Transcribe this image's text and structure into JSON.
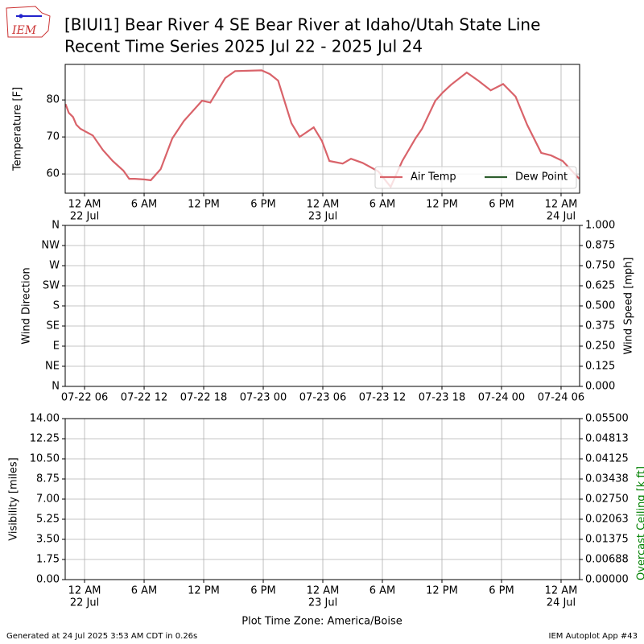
{
  "header": {
    "logo_text": "IEM",
    "title": "[BIUI1] Bear River 4 SE Bear River at Idaho/Utah State Line",
    "subtitle": "Recent Time Series 2025 Jul 22 - 2025 Jul 24"
  },
  "footer": {
    "left": "Generated at 24 Jul 2025 3:53 AM CDT in 0.26s",
    "right": "IEM Autoplot App #43"
  },
  "chart_data": [
    {
      "type": "line",
      "ylabel": "Temperature [F]",
      "legend": "lower right",
      "grid": true,
      "xlim": [
        "2025-07-21T22:03",
        "2025-07-24T01:52"
      ],
      "ylim": [
        54.8,
        89.6
      ],
      "yticks": [
        60,
        70,
        80
      ],
      "xticks": [
        {
          "value": "2025-07-22T00:00",
          "label": "12 AM",
          "date": "22 Jul"
        },
        {
          "value": "2025-07-22T06:00",
          "label": "6 AM"
        },
        {
          "value": "2025-07-22T12:00",
          "label": "12 PM"
        },
        {
          "value": "2025-07-22T18:00",
          "label": "6 PM"
        },
        {
          "value": "2025-07-23T00:00",
          "label": "12 AM",
          "date": "23 Jul"
        },
        {
          "value": "2025-07-23T06:00",
          "label": "6 AM"
        },
        {
          "value": "2025-07-23T12:00",
          "label": "12 PM"
        },
        {
          "value": "2025-07-23T18:00",
          "label": "6 PM"
        },
        {
          "value": "2025-07-24T00:00",
          "label": "12 AM",
          "date": "24 Jul"
        }
      ],
      "x": [
        "2025-07-21T22:05",
        "2025-07-21T22:25",
        "2025-07-21T22:50",
        "2025-07-21T23:10",
        "2025-07-21T23:35",
        "2025-07-22T00:50",
        "2025-07-22T01:50",
        "2025-07-22T02:50",
        "2025-07-22T03:55",
        "2025-07-22T04:30",
        "2025-07-22T05:05",
        "2025-07-22T06:05",
        "2025-07-22T06:40",
        "2025-07-22T07:40",
        "2025-07-22T08:50",
        "2025-07-22T10:00",
        "2025-07-22T11:50",
        "2025-07-22T12:40",
        "2025-07-22T14:10",
        "2025-07-22T15:10",
        "2025-07-22T17:50",
        "2025-07-22T18:40",
        "2025-07-22T19:30",
        "2025-07-22T20:50",
        "2025-07-22T21:40",
        "2025-07-22T23:05",
        "2025-07-22T23:55",
        "2025-07-23T00:40",
        "2025-07-23T02:00",
        "2025-07-23T02:50",
        "2025-07-23T04:00",
        "2025-07-23T05:35",
        "2025-07-23T06:50",
        "2025-07-23T08:00",
        "2025-07-23T09:20",
        "2025-07-23T10:00",
        "2025-07-23T11:20",
        "2025-07-23T12:05",
        "2025-07-23T12:55",
        "2025-07-23T14:30",
        "2025-07-23T15:40",
        "2025-07-23T16:55",
        "2025-07-23T18:10",
        "2025-07-23T19:25",
        "2025-07-23T20:35",
        "2025-07-23T22:00",
        "2025-07-23T23:00",
        "2025-07-24T00:10",
        "2025-07-24T01:50"
      ],
      "series": [
        {
          "name": "Air Temp",
          "color": "#d9636a",
          "values": [
            78.9,
            76.5,
            75.4,
            73.3,
            72.2,
            70.4,
            66.5,
            63.5,
            60.9,
            58.7,
            58.7,
            58.5,
            58.3,
            61.3,
            69.6,
            74.3,
            79.8,
            79.3,
            85.9,
            87.8,
            88,
            87,
            85.2,
            73.7,
            70,
            72.6,
            68.9,
            63.5,
            62.8,
            64.1,
            63,
            60.7,
            56.5,
            63.5,
            69.6,
            72.2,
            79.8,
            82,
            84.1,
            87.4,
            85.2,
            82.6,
            84.3,
            80.9,
            73.3,
            65.7,
            65,
            63.5,
            58.7
          ]
        },
        {
          "name": "Dew Point",
          "color": "#2e5e2e",
          "values": [
            null,
            null,
            null,
            null,
            null,
            null,
            null,
            null,
            null,
            null,
            null,
            null,
            null,
            null,
            null,
            null,
            null,
            null,
            null,
            null,
            null,
            null,
            null,
            null,
            null,
            null,
            null,
            null,
            null,
            null,
            null,
            null,
            null,
            null,
            null,
            null,
            null,
            null,
            null,
            null,
            null,
            null,
            null,
            null,
            null,
            null,
            null,
            null,
            null
          ]
        }
      ]
    },
    {
      "type": "line",
      "ylabel": "Wind Direction",
      "y2label": "Wind Speed [mph]",
      "grid": true,
      "xlim": [
        "2025-07-22T04:03",
        "2025-07-24T07:52"
      ],
      "ylim": [
        0,
        360
      ],
      "yticks": [
        {
          "value": 0,
          "label": "N"
        },
        {
          "value": 45,
          "label": "NE"
        },
        {
          "value": 90,
          "label": "E"
        },
        {
          "value": 135,
          "label": "SE"
        },
        {
          "value": 180,
          "label": "S"
        },
        {
          "value": 225,
          "label": "SW"
        },
        {
          "value": 270,
          "label": "W"
        },
        {
          "value": 315,
          "label": "NW"
        },
        {
          "value": 360,
          "label": "N"
        }
      ],
      "y2lim": [
        0,
        1
      ],
      "y2ticks": [
        {
          "value": 0,
          "label": "0.000"
        },
        {
          "value": 0.125,
          "label": "0.125"
        },
        {
          "value": 0.25,
          "label": "0.250"
        },
        {
          "value": 0.375,
          "label": "0.375"
        },
        {
          "value": 0.5,
          "label": "0.500"
        },
        {
          "value": 0.625,
          "label": "0.625"
        },
        {
          "value": 0.75,
          "label": "0.750"
        },
        {
          "value": 0.875,
          "label": "0.875"
        },
        {
          "value": 1,
          "label": "1.000"
        }
      ],
      "xticks": [
        {
          "value": "2025-07-22T06:00",
          "label": "07-22 06"
        },
        {
          "value": "2025-07-22T12:00",
          "label": "07-22 12"
        },
        {
          "value": "2025-07-22T18:00",
          "label": "07-22 18"
        },
        {
          "value": "2025-07-23T00:00",
          "label": "07-23 00"
        },
        {
          "value": "2025-07-23T06:00",
          "label": "07-23 06"
        },
        {
          "value": "2025-07-23T12:00",
          "label": "07-23 12"
        },
        {
          "value": "2025-07-23T18:00",
          "label": "07-23 18"
        },
        {
          "value": "2025-07-24T00:00",
          "label": "07-24 00"
        },
        {
          "value": "2025-07-24T06:00",
          "label": "07-24 06"
        }
      ]
    },
    {
      "type": "line",
      "ylabel": "Visibility [miles]",
      "y2label": "Overcast Ceiling [k ft]",
      "y2color": "#008000",
      "xlabel": "Plot Time Zone: America/Boise",
      "grid": true,
      "xlim": [
        "2025-07-21T22:03",
        "2025-07-24T01:52"
      ],
      "ylim": [
        0,
        14
      ],
      "yticks": [
        {
          "value": 0,
          "label": "0.00"
        },
        1.75,
        {
          "value": 3.5,
          "label": "3.50"
        },
        5.25,
        {
          "value": 7,
          "label": "7.00"
        },
        8.75,
        {
          "value": 10.5,
          "label": "10.50"
        },
        12.25,
        {
          "value": 14,
          "label": "14.00"
        }
      ],
      "y2lim": [
        0,
        0.055
      ],
      "y2ticks": [
        {
          "value": 0,
          "label": "0.00000"
        },
        {
          "value": 0.006875,
          "label": "0.00688"
        },
        {
          "value": 0.01375,
          "label": "0.01375"
        },
        {
          "value": 0.020625,
          "label": "0.02063"
        },
        {
          "value": 0.0275,
          "label": "0.02750"
        },
        {
          "value": 0.034375,
          "label": "0.03438"
        },
        {
          "value": 0.04125,
          "label": "0.04125"
        },
        {
          "value": 0.048125,
          "label": "0.04813"
        },
        {
          "value": 0.055,
          "label": "0.05500"
        }
      ],
      "xticks": [
        {
          "value": "2025-07-22T00:00",
          "label": "12 AM",
          "date": "22 Jul"
        },
        {
          "value": "2025-07-22T06:00",
          "label": "6 AM"
        },
        {
          "value": "2025-07-22T12:00",
          "label": "12 PM"
        },
        {
          "value": "2025-07-22T18:00",
          "label": "6 PM"
        },
        {
          "value": "2025-07-23T00:00",
          "label": "12 AM",
          "date": "23 Jul"
        },
        {
          "value": "2025-07-23T06:00",
          "label": "6 AM"
        },
        {
          "value": "2025-07-23T12:00",
          "label": "12 PM"
        },
        {
          "value": "2025-07-23T18:00",
          "label": "6 PM"
        },
        {
          "value": "2025-07-24T00:00",
          "label": "12 AM",
          "date": "24 Jul"
        }
      ]
    }
  ]
}
